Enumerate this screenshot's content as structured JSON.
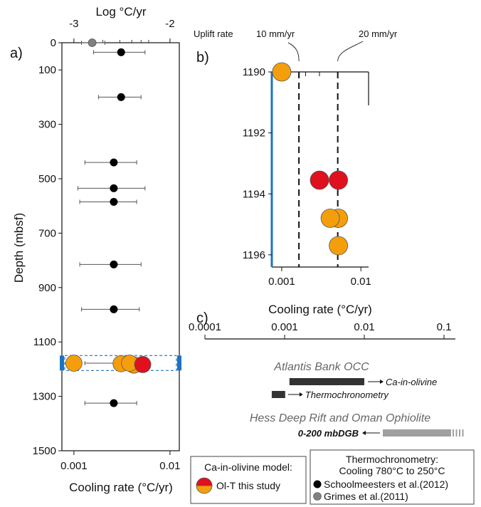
{
  "colors": {
    "olivine_orange": "#F59E0B",
    "olivine_red": "#E0101E",
    "schoolmeesters_black": "#000000",
    "grimes_gray": "#808080",
    "highlight_blue": "#1E73BE",
    "bar_dark": "#333333",
    "bar_light": "#A0A0A0"
  },
  "chart_data": [
    {
      "panel": "a)",
      "type": "scatter",
      "xlabel": "Cooling rate (°C/yr)",
      "ylabel": "Depth (mbsf)",
      "top_axis_label": "Log °C/yr",
      "x_scale": "log",
      "xlim": [
        0.00075,
        0.0125
      ],
      "ylim": [
        1500,
        0
      ],
      "x_ticks": [
        0.001,
        0.01
      ],
      "x_tick_labels": [
        "0.001",
        "0.01"
      ],
      "top_ticks": [
        -3,
        -2
      ],
      "top_tick_labels": [
        "-3",
        "-2"
      ],
      "y_ticks": [
        0,
        100,
        300,
        500,
        700,
        900,
        1100,
        1300,
        1500
      ],
      "y_tick_labels": [
        "0",
        "100",
        "300",
        "500",
        "700",
        "900",
        "1100",
        "1300",
        "1500"
      ],
      "highlight_band": [
        1150,
        1205
      ],
      "series": [
        {
          "name": "Schoolmeesters et al.(2012)",
          "color": "#000000",
          "points": [
            {
              "x": 0.0031,
              "y": 35,
              "xerr": [
                0.0016,
                0.0055
              ]
            },
            {
              "x": 0.0031,
              "y": 200,
              "xerr": [
                0.0018,
                0.005
              ]
            },
            {
              "x": 0.0026,
              "y": 440,
              "xerr": [
                0.0013,
                0.0045
              ]
            },
            {
              "x": 0.0026,
              "y": 535,
              "xerr": [
                0.0011,
                0.0055
              ]
            },
            {
              "x": 0.0026,
              "y": 585,
              "xerr": [
                0.00115,
                0.0045
              ]
            },
            {
              "x": 0.0026,
              "y": 815,
              "xerr": [
                0.00115,
                0.005
              ]
            },
            {
              "x": 0.0026,
              "y": 980,
              "xerr": [
                0.0012,
                0.0048
              ]
            },
            {
              "x": 0.0029,
              "y": 1178,
              "xerr": [
                0.0013,
                0.006
              ]
            },
            {
              "x": 0.0026,
              "y": 1325,
              "xerr": [
                0.0013,
                0.0045
              ]
            }
          ]
        },
        {
          "name": "Grimes et al.(2011)",
          "color": "#808080",
          "points": [
            {
              "x": 0.00155,
              "y": 0,
              "xerr": [
                0.0012,
                0.0021
              ]
            }
          ]
        },
        {
          "name": "Ol-T this study",
          "color": "#F59E0B",
          "points": [
            {
              "x": 0.001,
              "y": 1178
            },
            {
              "x": 0.0031,
              "y": 1180
            },
            {
              "x": 0.0042,
              "y": 1185
            },
            {
              "x": 0.0038,
              "y": 1178
            },
            {
              "x": 0.0052,
              "y": 1183,
              "color": "#E0101E"
            }
          ]
        }
      ]
    },
    {
      "panel": "b)",
      "type": "scatter",
      "xlabel": "Cooling rate (°C/yr)",
      "x_scale": "log",
      "xlim": [
        0.00075,
        0.0125
      ],
      "ylim": [
        1196.4,
        1190
      ],
      "x_ticks": [
        0.001,
        0.01
      ],
      "x_tick_labels": [
        "0.001",
        "0.01"
      ],
      "y_ticks": [
        1190,
        1192,
        1194,
        1196
      ],
      "y_tick_labels": [
        "1190",
        "1192",
        "1194",
        "1196"
      ],
      "uplift_label": "Uplift rate",
      "uplift_lines": [
        {
          "label": "10 mm/yr",
          "x": 0.00165
        },
        {
          "label": "20 mm/yr",
          "x": 0.0051
        }
      ],
      "series": [
        {
          "name": "Ol-T this study",
          "points": [
            {
              "x": 0.001,
              "y": 1190,
              "color": "#F59E0B"
            },
            {
              "x": 0.003,
              "y": 1193.55,
              "color": "#E0101E"
            },
            {
              "x": 0.0052,
              "y": 1193.55,
              "color": "#E0101E"
            },
            {
              "x": 0.0052,
              "y": 1194.8,
              "color": "#F59E0B"
            },
            {
              "x": 0.0041,
              "y": 1194.8,
              "color": "#F59E0B"
            },
            {
              "x": 0.0052,
              "y": 1195.7,
              "color": "#F59E0B"
            }
          ]
        }
      ]
    },
    {
      "panel": "c)",
      "type": "bar",
      "x_scale": "log",
      "xlim": [
        0.0001,
        0.1
      ],
      "x_ticks": [
        0.0001,
        0.001,
        0.01,
        0.1
      ],
      "x_tick_labels": [
        "0.0001",
        "0.001",
        "0.01",
        "0.1"
      ],
      "groups": [
        {
          "title": "Atlantis Bank OCC",
          "ranges": [
            {
              "label": "Ca-in-olivine",
              "from": 0.00115,
              "to": 0.01,
              "style": "dark"
            },
            {
              "label": "Thermochronometry",
              "from": 0.00078,
              "to": 0.00115,
              "style": "dark"
            }
          ]
        },
        {
          "title": "Hess Deep Rift and Oman Ophiolite",
          "ranges": [
            {
              "label": "0-200 mbDGB",
              "from": 0.01,
              "to": 0.16,
              "style": "light"
            }
          ]
        }
      ]
    }
  ],
  "legend_left": {
    "title": "Ca-in-olivine model:",
    "item": "Ol-T this study"
  },
  "legend_right": {
    "title_line1": "Thermochronometry:",
    "title_line2": "Cooling 780°C to 250°C",
    "item1": "Schoolmeesters et al.(2012)",
    "item2": "Grimes et al.(2011)"
  }
}
